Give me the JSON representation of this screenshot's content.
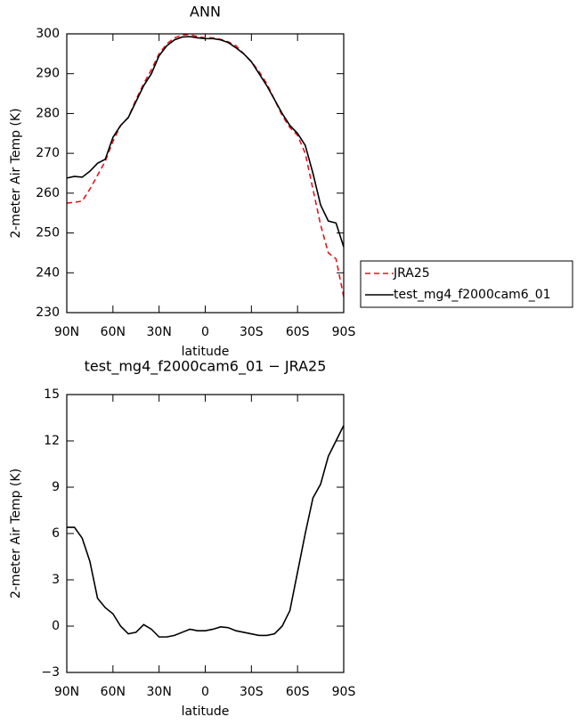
{
  "chart_data": [
    {
      "type": "line",
      "title": "ANN",
      "xlabel": "latitude",
      "ylabel": "2-meter Air Temp (K)",
      "x": [
        90,
        85,
        80,
        75,
        70,
        65,
        60,
        55,
        50,
        45,
        40,
        35,
        30,
        25,
        20,
        15,
        10,
        5,
        0,
        -5,
        -10,
        -15,
        -20,
        -25,
        -30,
        -35,
        -40,
        -45,
        -50,
        -55,
        -60,
        -65,
        -70,
        -75,
        -80,
        -85,
        -90
      ],
      "series": [
        {
          "name": "JRA25",
          "color": "#e8141c",
          "style": "dashed",
          "values": [
            257.5,
            257.7,
            258,
            261,
            264.5,
            268,
            273,
            277,
            279,
            283.5,
            287.5,
            291,
            295,
            297.5,
            299,
            299.7,
            299.8,
            299.3,
            299,
            299,
            298.6,
            298,
            297,
            295,
            293,
            290.5,
            287.5,
            283.5,
            279.5,
            276.5,
            274.5,
            270,
            261,
            252,
            245,
            243.5,
            234
          ]
        },
        {
          "name": "test_mg4_f2000cam6_01",
          "color": "#000000",
          "style": "solid",
          "values": [
            263.8,
            264.2,
            264,
            265.5,
            267.5,
            268.5,
            274,
            277,
            279,
            283,
            287,
            290,
            294.5,
            297,
            298.5,
            299.2,
            299.3,
            299,
            298.8,
            298.8,
            298.5,
            297.8,
            296.5,
            295,
            293,
            290,
            287,
            283.5,
            280,
            277,
            275,
            272,
            265,
            257,
            253,
            252.5,
            246.5
          ]
        }
      ],
      "xlim": [
        90,
        -90
      ],
      "xticks": [
        {
          "value": 90,
          "label": "90N"
        },
        {
          "value": 60,
          "label": "60N"
        },
        {
          "value": 30,
          "label": "30N"
        },
        0,
        {
          "value": -30,
          "label": "30S"
        },
        {
          "value": -60,
          "label": "60S"
        },
        {
          "value": -90,
          "label": "90S"
        }
      ],
      "ylim": [
        230,
        300
      ],
      "yticks": [
        230,
        240,
        250,
        260,
        270,
        280,
        290,
        300
      ],
      "legend": "right"
    },
    {
      "type": "line",
      "title": "test_mg4_f2000cam6_01 − JRA25",
      "xlabel": "latitude",
      "ylabel": "2-meter Air Temp (K)",
      "x": [
        90,
        85,
        80,
        75,
        70,
        65,
        60,
        55,
        50,
        45,
        40,
        35,
        30,
        25,
        20,
        15,
        10,
        5,
        0,
        -5,
        -10,
        -15,
        -20,
        -25,
        -30,
        -35,
        -40,
        -45,
        -50,
        -55,
        -60,
        -65,
        -70,
        -75,
        -80,
        -85,
        -90
      ],
      "values": [
        6.4,
        6.4,
        5.7,
        4.2,
        1.8,
        1.2,
        0.8,
        0,
        -0.5,
        -0.4,
        0.1,
        -0.2,
        -0.7,
        -0.7,
        -0.6,
        -0.4,
        -0.2,
        -0.3,
        -0.3,
        -0.2,
        -0.05,
        -0.1,
        -0.3,
        -0.4,
        -0.5,
        -0.6,
        -0.6,
        -0.5,
        0,
        1,
        3.5,
        6,
        8.3,
        9.2,
        11,
        12,
        13
      ],
      "color": "#000000",
      "xlim": [
        90,
        -90
      ],
      "xticks": [
        {
          "value": 90,
          "label": "90N"
        },
        {
          "value": 60,
          "label": "60N"
        },
        {
          "value": 30,
          "label": "30N"
        },
        0,
        {
          "value": -30,
          "label": "30S"
        },
        {
          "value": -60,
          "label": "60S"
        },
        {
          "value": -90,
          "label": "90S"
        }
      ],
      "ylim": [
        -3,
        15
      ],
      "yticks": [
        {
          "value": -3,
          "label": "−3"
        },
        0,
        3,
        6,
        9,
        12,
        15
      ]
    }
  ]
}
